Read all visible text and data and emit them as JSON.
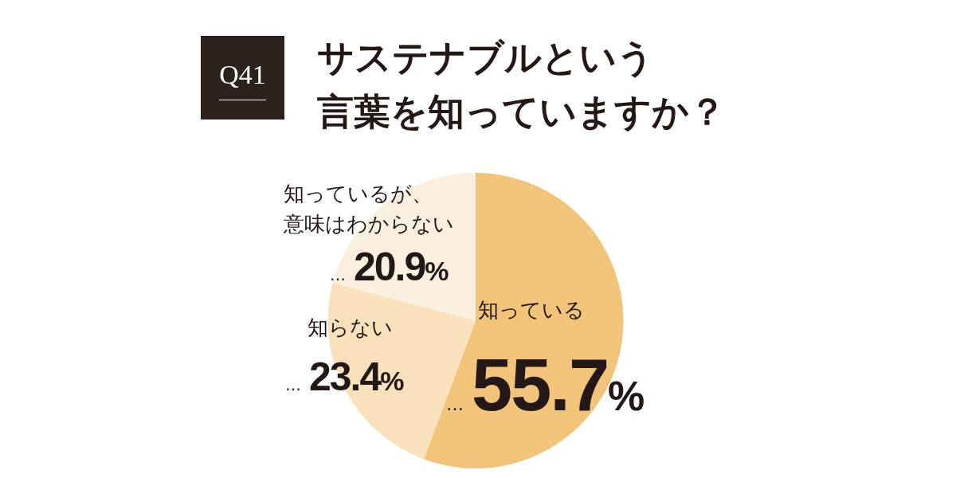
{
  "chart_data": {
    "type": "pie",
    "title": "サステナブルという言葉を知っていますか？",
    "annotations": [
      "Q41"
    ],
    "categories": [
      "知っている",
      "知らない",
      "知っているが、意味はわからない"
    ],
    "values": [
      55.7,
      23.4,
      20.9
    ],
    "colors": [
      "#f2c47a",
      "#f8e1bb",
      "#fbefdf"
    ],
    "value_labels": [
      "…55.7%",
      "…23.4%",
      "…20.9%"
    ]
  }
}
